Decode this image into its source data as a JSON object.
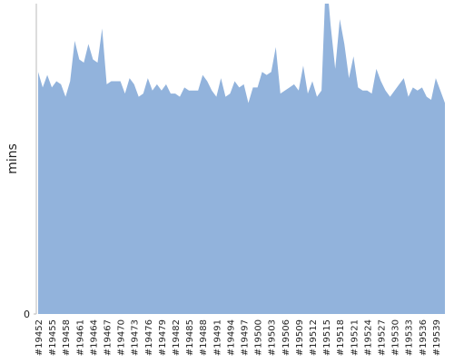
{
  "chart_data": {
    "type": "area",
    "y_label": "mins",
    "color": "#92b3dc",
    "categories": [
      "#19452",
      null,
      null,
      "#19455",
      null,
      null,
      "#19458",
      null,
      null,
      "#19461",
      null,
      null,
      "#19464",
      null,
      null,
      "#19467",
      null,
      null,
      "#19470",
      null,
      null,
      "#19473",
      null,
      null,
      "#19476",
      null,
      null,
      "#19479",
      null,
      null,
      "#19482",
      null,
      null,
      "#19485",
      null,
      null,
      "#19488",
      null,
      null,
      "#19491",
      null,
      null,
      "#19494",
      null,
      null,
      "#19497",
      null,
      null,
      "#19500",
      null,
      null,
      "#19503",
      null,
      null,
      "#19506",
      null,
      null,
      "#19509",
      null,
      null,
      "#19512",
      null,
      null,
      "#19515",
      null,
      null,
      "#19518",
      null,
      null,
      "#19521",
      null,
      null,
      "#19524",
      null,
      null,
      "#19527",
      null,
      null,
      "#19530",
      null,
      null,
      "#19533",
      null,
      null,
      "#19536",
      null,
      null,
      "#19539",
      null,
      null
    ],
    "values": [
      78,
      73,
      77,
      73,
      75,
      74,
      70,
      75,
      88,
      82,
      81,
      87,
      82,
      81,
      92,
      74,
      75,
      75,
      75,
      71,
      76,
      74,
      70,
      71,
      76,
      72,
      74,
      72,
      74,
      71,
      71,
      70,
      73,
      72,
      72,
      72,
      77,
      75,
      72,
      70,
      76,
      70,
      71,
      75,
      73,
      74,
      68,
      73,
      73,
      78,
      77,
      78,
      86,
      71,
      72,
      73,
      74,
      72,
      80,
      71,
      75,
      70,
      72,
      110,
      93,
      79,
      95,
      87,
      76,
      83,
      73,
      72,
      72,
      71,
      79,
      75,
      72,
      70,
      72,
      74,
      76,
      70,
      73,
      72,
      73,
      70,
      69,
      76,
      72,
      68
    ],
    "ylim": [
      0,
      100
    ],
    "yticks": [
      0
    ]
  }
}
